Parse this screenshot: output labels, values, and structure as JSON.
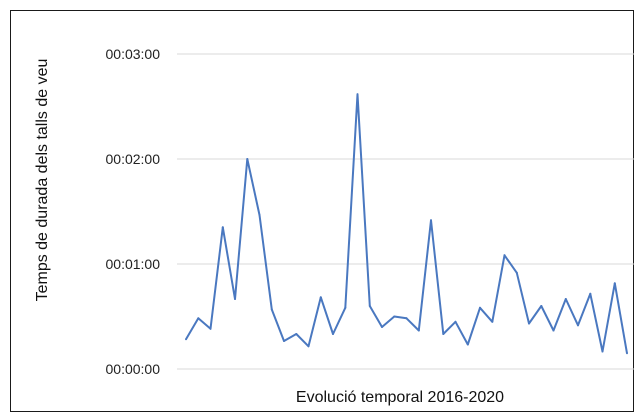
{
  "chart_data": {
    "type": "line",
    "xlabel": "Evolució temporal 2016-2020",
    "ylabel": "Temps de durada dels talls de veu",
    "ylim": [
      0,
      180
    ],
    "yticks": [
      {
        "value": 0,
        "label": "00:00:00"
      },
      {
        "value": 60,
        "label": "00:01:00"
      },
      {
        "value": 120,
        "label": "00:02:00"
      },
      {
        "value": 180,
        "label": "00:03:00"
      }
    ],
    "grid": true,
    "series": [
      {
        "color": "#4a78c0",
        "values": [
          17,
          29,
          23,
          81,
          40,
          120,
          88,
          34,
          16,
          20,
          13,
          41,
          20,
          35,
          157,
          36,
          24,
          30,
          29,
          22,
          85,
          20,
          27,
          14,
          35,
          27,
          65,
          55,
          26,
          36,
          22,
          40,
          25,
          43,
          10,
          49,
          9
        ]
      }
    ]
  }
}
